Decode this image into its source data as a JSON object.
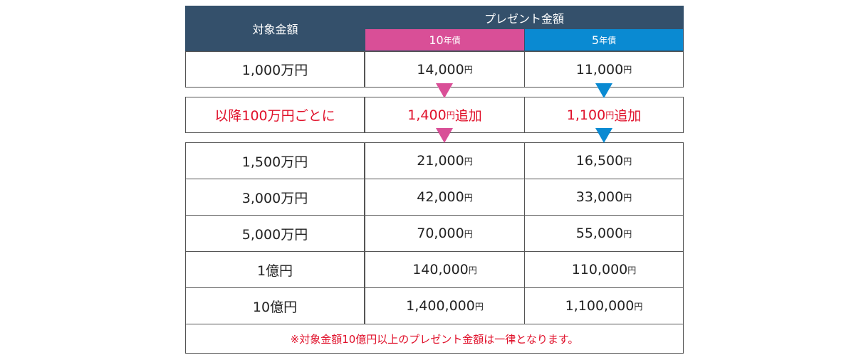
{
  "table": {
    "header": {
      "target": "対象金額",
      "present": "プレゼント金額",
      "bonds": [
        {
          "num": "10",
          "unit": "年債"
        },
        {
          "num": "5",
          "unit": "年債"
        }
      ]
    },
    "first_row": {
      "label": "1,000万円",
      "cells": [
        {
          "amount": "14,000",
          "unit": "円"
        },
        {
          "amount": "11,000",
          "unit": "円"
        }
      ]
    },
    "increment": {
      "label": "以降100万円ごとに",
      "cells": [
        {
          "amount": "1,400",
          "unit": "円",
          "suffix": "追加"
        },
        {
          "amount": "1,100",
          "unit": "円",
          "suffix": "追加"
        }
      ]
    },
    "rows": [
      {
        "label": "1,500万円",
        "cells": [
          {
            "amount": "21,000",
            "unit": "円"
          },
          {
            "amount": "16,500",
            "unit": "円"
          }
        ]
      },
      {
        "label": "3,000万円",
        "cells": [
          {
            "amount": "42,000",
            "unit": "円"
          },
          {
            "amount": "33,000",
            "unit": "円"
          }
        ]
      },
      {
        "label": "5,000万円",
        "cells": [
          {
            "amount": "70,000",
            "unit": "円"
          },
          {
            "amount": "55,000",
            "unit": "円"
          }
        ]
      },
      {
        "label": "1億円",
        "cells": [
          {
            "amount": "140,000",
            "unit": "円"
          },
          {
            "amount": "110,000",
            "unit": "円"
          }
        ]
      },
      {
        "label": "10億円",
        "cells": [
          {
            "amount": "1,400,000",
            "unit": "円"
          },
          {
            "amount": "1,100,000",
            "unit": "円"
          }
        ]
      }
    ],
    "note": "※対象金額10億円以上のプレゼント金額は一律となります。"
  }
}
